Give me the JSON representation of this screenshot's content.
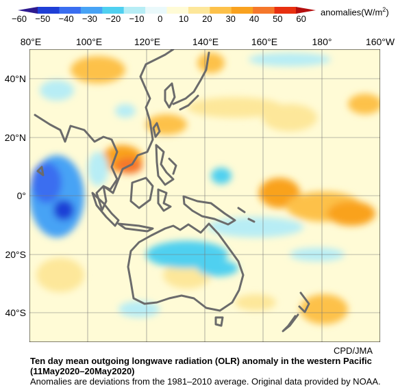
{
  "colorbar": {
    "ticks": [
      "−60",
      "−50",
      "−40",
      "−30",
      "−20",
      "−10",
      "0",
      "10",
      "20",
      "30",
      "40",
      "50",
      "60"
    ],
    "colors": [
      "#1f3fd6",
      "#3a6ef0",
      "#47a3f5",
      "#4fd0f0",
      "#b7edf5",
      "#eaf9fb",
      "#fffbd6",
      "#fde79a",
      "#fdc14a",
      "#f9a21f",
      "#f5772b",
      "#e83010"
    ],
    "units_text": "anomalies(W/m",
    "units_sup": "2",
    "units_close": ")"
  },
  "map": {
    "longitude_labels": [
      "80°E",
      "100°E",
      "120°E",
      "140°E",
      "160°E",
      "180°",
      "160°W"
    ],
    "latitude_labels": [
      "40°N",
      "20°N",
      "0°",
      "20°S",
      "40°S"
    ],
    "longitude_range": [
      "80E",
      "160W"
    ],
    "latitude_range": [
      "50N",
      "50S"
    ],
    "land_outline_color": "#6b6b6b",
    "background_color": "#fffbd6"
  },
  "credit": "CPD/JMA",
  "caption": {
    "title": "Ten day mean outgoing longwave radiation (OLR) anomaly in the western Pacific",
    "dates": "(11May2020–20May2020)",
    "note": "Anomalies are deviations from the 1981–2010 average. Original data provided by NOAA."
  }
}
